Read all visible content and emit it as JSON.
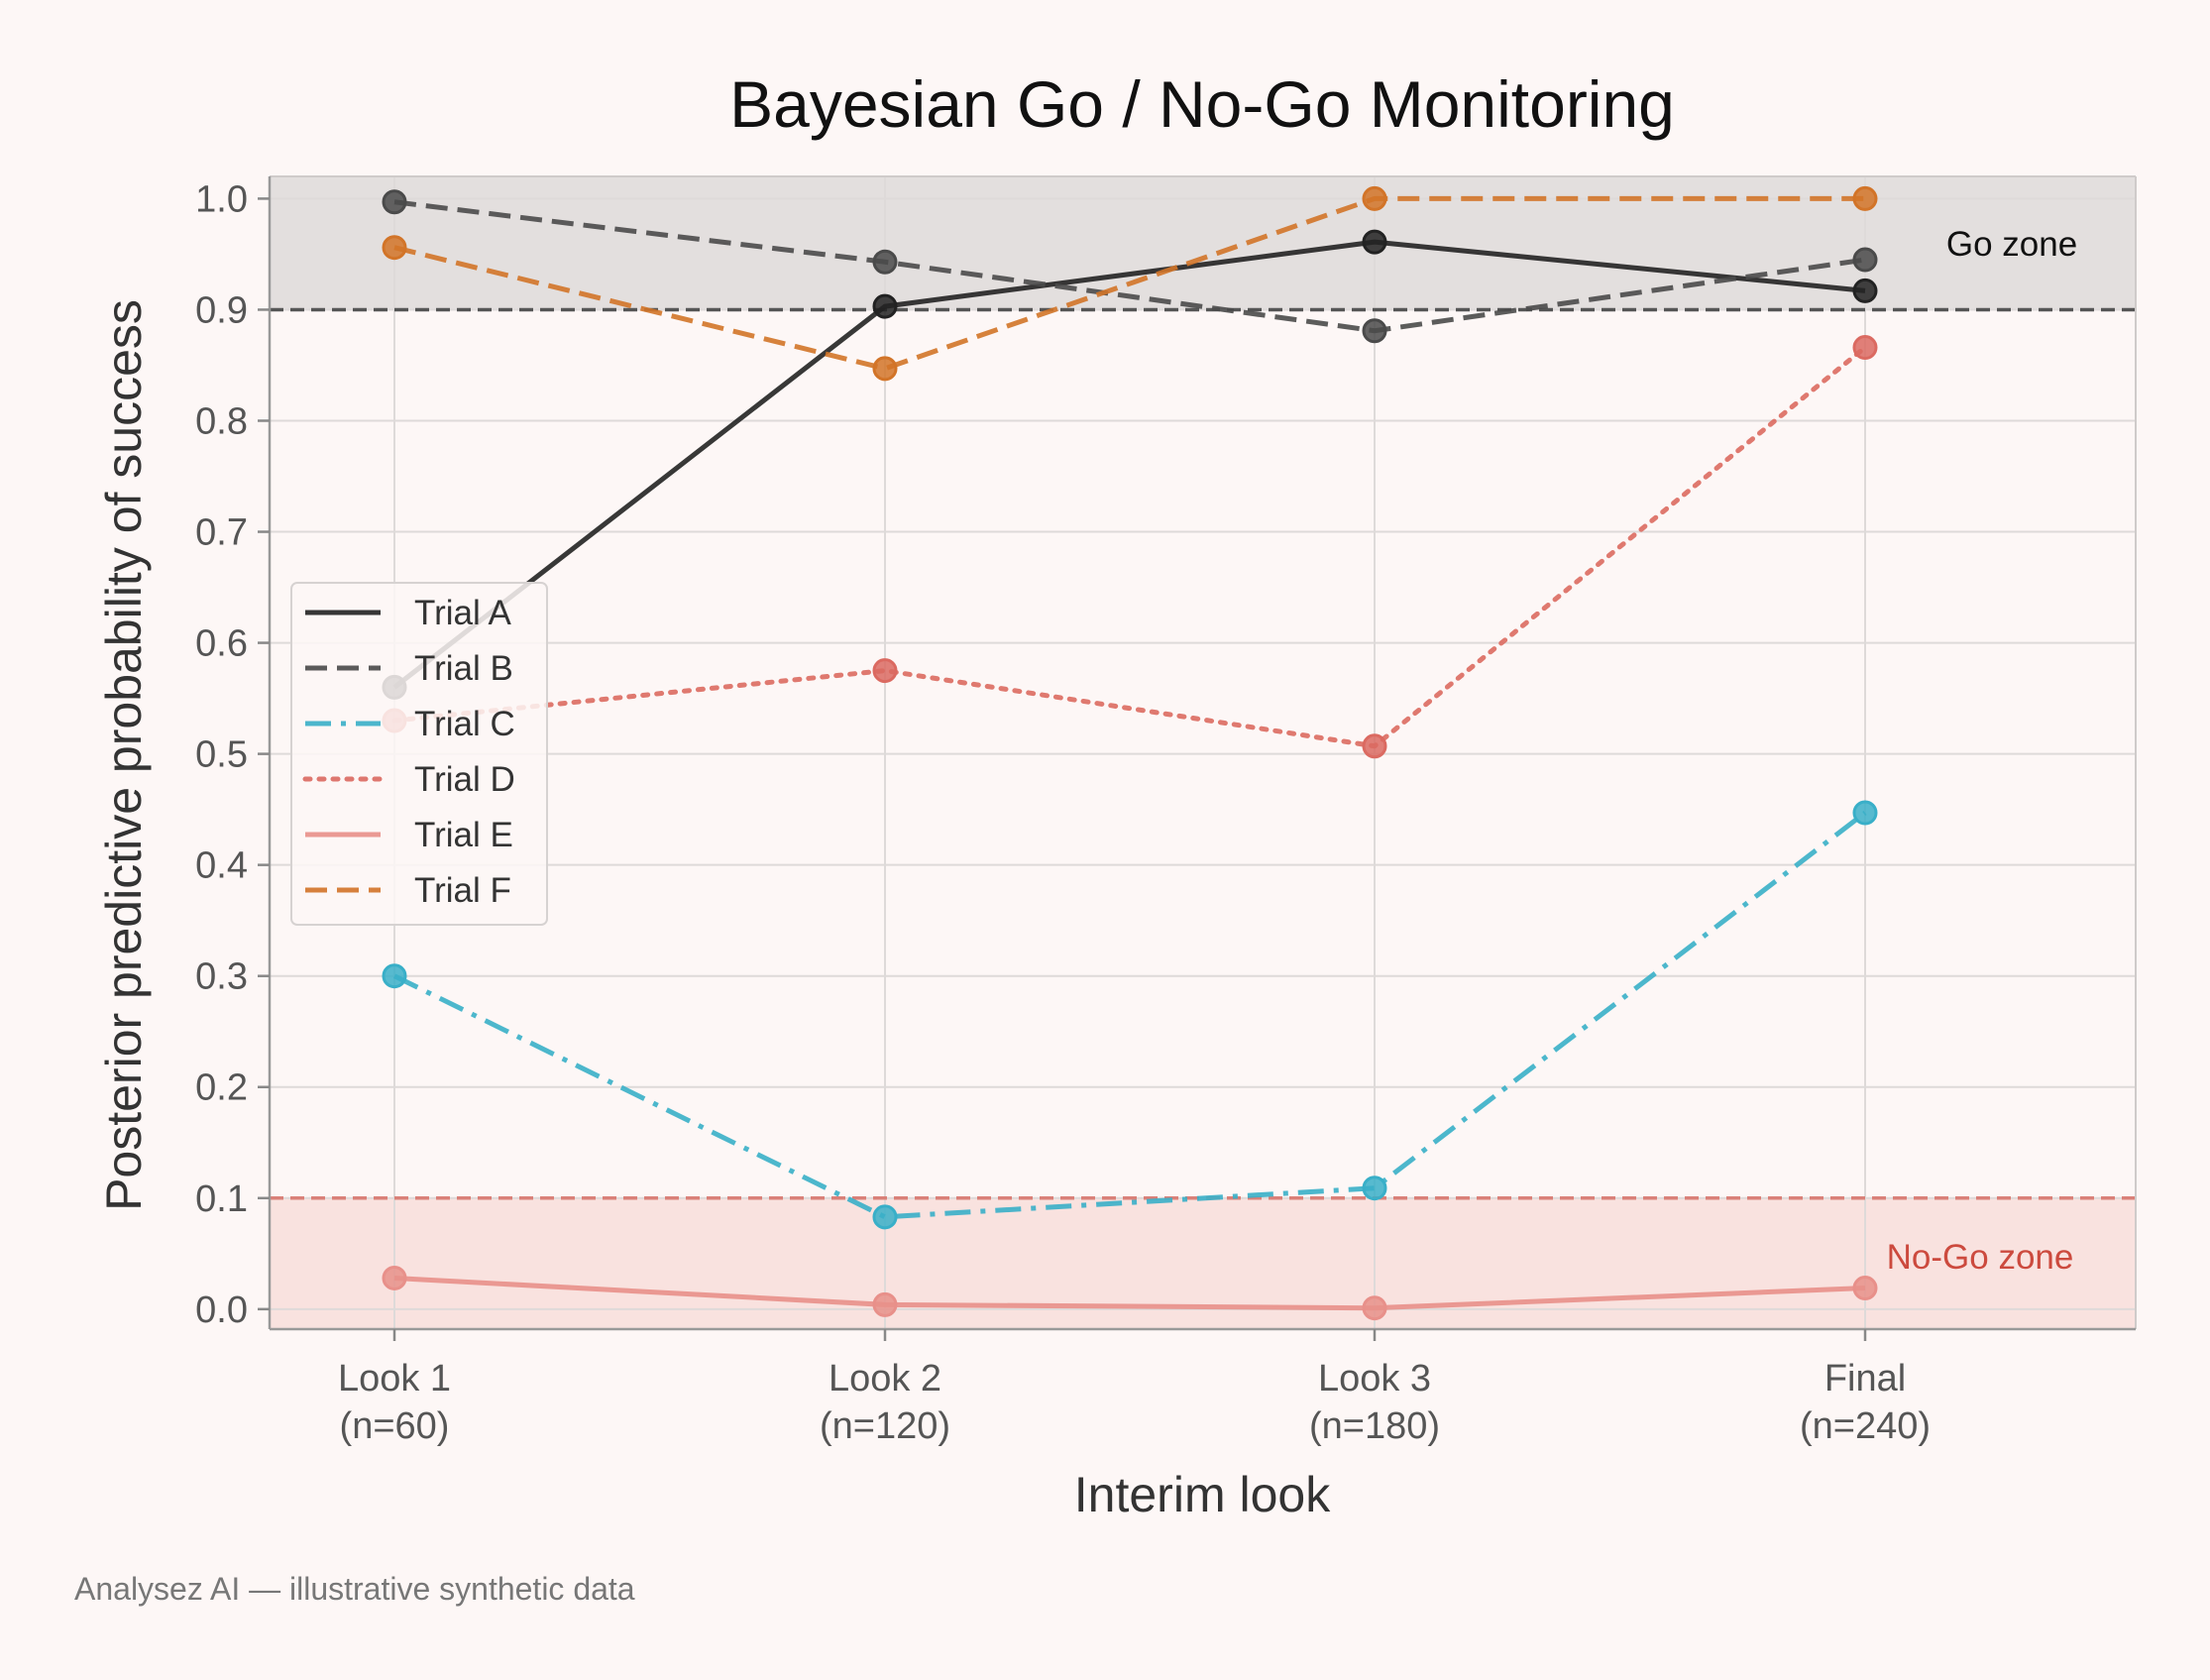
{
  "chart_data": {
    "type": "line",
    "title": "Bayesian Go / No-Go Monitoring",
    "xlabel": "Interim look",
    "ylabel": "Posterior predictive probability of success",
    "categories": [
      [
        "Look 1",
        "(n=60)"
      ],
      [
        "Look 2",
        "(n=120)"
      ],
      [
        "Look 3",
        "(n=180)"
      ],
      [
        "Final",
        "(n=240)"
      ]
    ],
    "ylim": [
      -0.018,
      1.02
    ],
    "yticks": [
      "0.0",
      "0.1",
      "0.2",
      "0.3",
      "0.4",
      "0.5",
      "0.6",
      "0.7",
      "0.8",
      "0.9",
      "1.0"
    ],
    "grid": true,
    "legend_position": "center-left",
    "thresholds": {
      "go": {
        "value": 0.9,
        "label": "Go zone",
        "color": "#555555",
        "fill": "#e3dfde"
      },
      "nogo": {
        "value": 0.1,
        "label": "No-Go zone",
        "color": "#d9776e",
        "fill": "#f9e2df",
        "label_color": "#cc4a3e"
      }
    },
    "series": [
      {
        "name": "Trial A",
        "values": [
          0.56,
          0.903,
          0.961,
          0.917
        ],
        "color": "#222222",
        "dash": "solid"
      },
      {
        "name": "Trial B",
        "values": [
          0.997,
          0.943,
          0.881,
          0.945
        ],
        "color": "#4a4a4a",
        "dash": "dashed"
      },
      {
        "name": "Trial C",
        "values": [
          0.3,
          0.083,
          0.109,
          0.447
        ],
        "color": "#39afc8",
        "dash": "dashdot"
      },
      {
        "name": "Trial D",
        "values": [
          0.53,
          0.575,
          0.507,
          0.866
        ],
        "color": "#db6a61",
        "dash": "dotted"
      },
      {
        "name": "Trial E",
        "values": [
          0.028,
          0.004,
          0.001,
          0.019
        ],
        "color": "#e8908a",
        "dash": "solid"
      },
      {
        "name": "Trial F",
        "values": [
          0.956,
          0.847,
          1.0,
          1.0
        ],
        "color": "#d27428",
        "dash": "dashed"
      }
    ]
  },
  "footer": "Analysez AI — illustrative synthetic data"
}
